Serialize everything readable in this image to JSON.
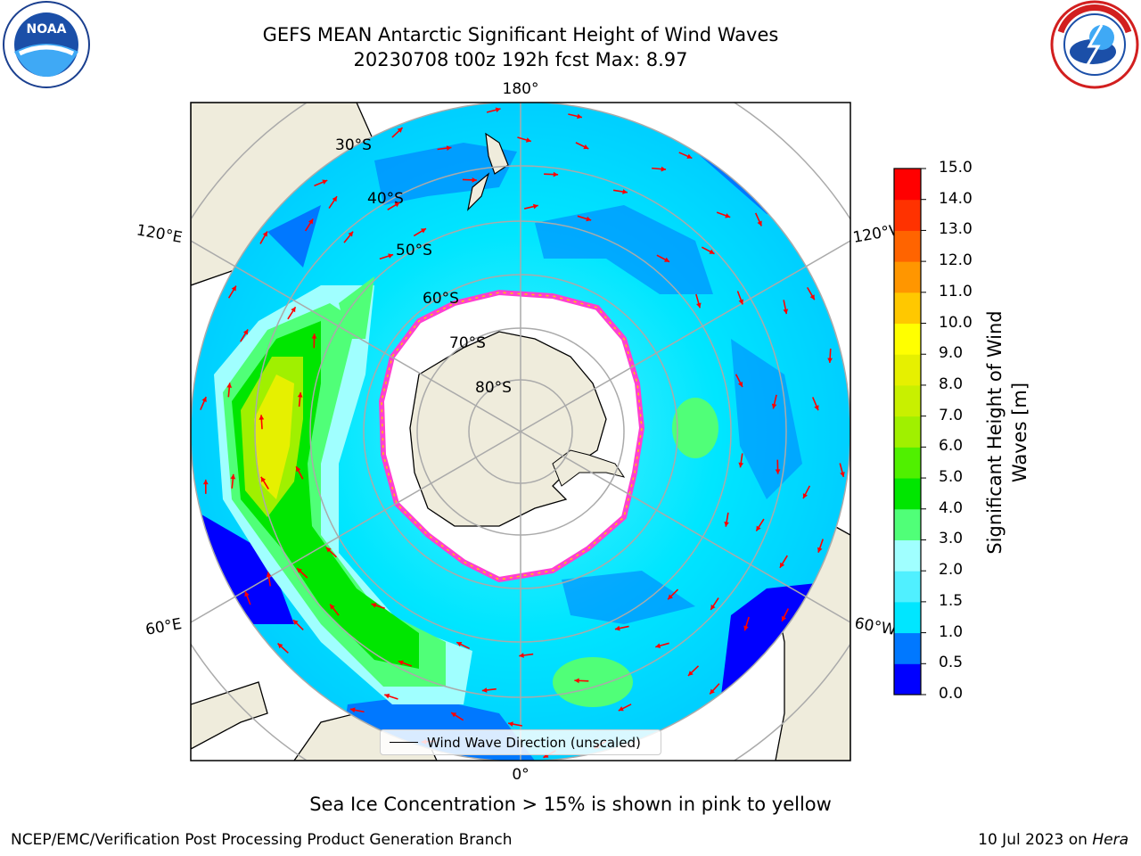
{
  "header": {
    "title_line1": "GEFS MEAN Antarctic Significant Height of Wind Waves",
    "title_line2": "20230708 t00z 192h fcst   Max: 8.97"
  },
  "logos": {
    "left": "NOAA",
    "left_icon": "noaa-logo",
    "right": "NATIONAL WEATHER SERVICE",
    "right_icon": "nws-logo"
  },
  "map": {
    "projection": "south-polar-stereographic",
    "lon_labels": {
      "top": "180°",
      "bottom": "0°",
      "left_upper": "120°E",
      "left_lower": "60°E",
      "right_upper": "120°W",
      "right_lower": "60°W"
    },
    "lat_labels": [
      "30°S",
      "40°S",
      "50°S",
      "60°S",
      "70°S",
      "80°S"
    ],
    "legend_label": "Wind Wave Direction (unscaled)",
    "arrow_color": "#ff0000",
    "land_color": "#efecdc"
  },
  "colorbar": {
    "title_line1": "Significant Height of Wind",
    "title_line2": "Waves [m]",
    "ticks": [
      "0.0",
      "0.5",
      "1.0",
      "1.5",
      "2.0",
      "3.0",
      "4.0",
      "5.0",
      "6.0",
      "7.0",
      "8.0",
      "9.0",
      "10.0",
      "11.0",
      "12.0",
      "13.0",
      "14.0",
      "15.0"
    ],
    "colors": [
      "#0000ff",
      "#0078ff",
      "#00e6ff",
      "#50f0ff",
      "#a0ffff",
      "#50ff78",
      "#00e600",
      "#50f000",
      "#a0f000",
      "#c8f000",
      "#e6f000",
      "#ffff00",
      "#ffc800",
      "#ff9600",
      "#ff6400",
      "#ff3200",
      "#ff0000"
    ]
  },
  "caption": "Sea Ice Concentration > 15% is shown in pink to yellow",
  "footer": {
    "left": "NCEP/EMC/Verification Post Processing Product Generation Branch",
    "right_date": "10 Jul 2023 on ",
    "right_host": "Hera"
  }
}
